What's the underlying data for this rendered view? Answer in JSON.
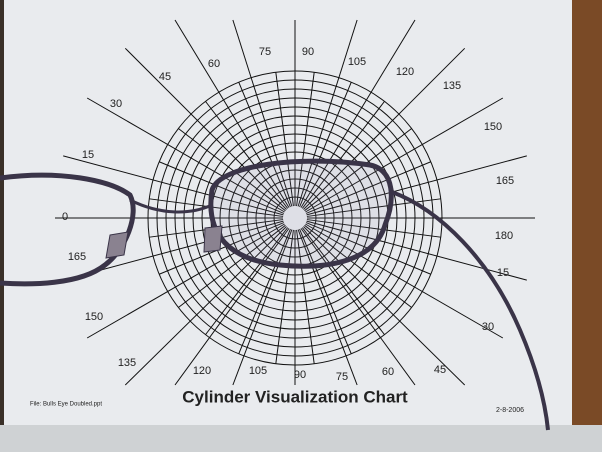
{
  "title": "Cylinder Visualization Chart",
  "file_label": "File: Bulls Eye Doubled.ppt",
  "date": "2-8-2006",
  "angle_labels": [
    "75",
    "90",
    "105",
    "120",
    "135",
    "150",
    "165",
    "180",
    "15",
    "30",
    "45",
    "60",
    "75",
    "90",
    "105",
    "120",
    "135",
    "150",
    "165",
    "0",
    "15",
    "30",
    "45",
    "60"
  ]
}
